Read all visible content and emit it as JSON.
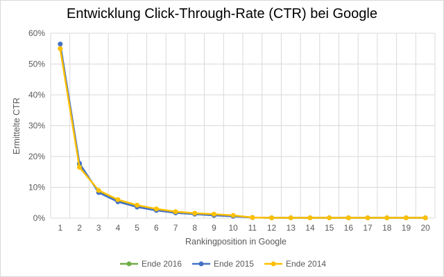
{
  "chart_data": {
    "type": "line",
    "title": "Entwicklung Click-Through-Rate (CTR) bei Google",
    "xlabel": "Rankingposition  in Google",
    "ylabel": "Ermittelte CTR",
    "x": [
      1,
      2,
      3,
      4,
      5,
      6,
      7,
      8,
      9,
      10,
      11,
      12,
      13,
      14,
      15,
      16,
      17,
      18,
      19,
      20
    ],
    "ylim": [
      0,
      0.6
    ],
    "y_ticks": [
      0,
      0.1,
      0.2,
      0.3,
      0.4,
      0.5,
      0.6
    ],
    "y_tick_labels": [
      "0%",
      "10%",
      "20%",
      "30%",
      "40%",
      "50%",
      "60%"
    ],
    "grid": true,
    "legend_position": "bottom",
    "series": [
      {
        "name": "Ende 2016",
        "color": "#70ad47",
        "values": [
          0.55,
          0.175,
          0.085,
          0.055,
          0.038,
          0.026,
          0.018,
          0.014,
          0.011,
          0.008,
          0.002,
          0.001,
          0.001,
          0.001,
          0.001,
          0.001,
          0.001,
          0.001,
          0.001,
          0.001
        ]
      },
      {
        "name": "Ende 2015",
        "color": "#4472c4",
        "values": [
          0.565,
          0.178,
          0.083,
          0.053,
          0.036,
          0.025,
          0.017,
          0.013,
          0.009,
          0.006,
          0.002,
          0.001,
          0.001,
          0.001,
          0.001,
          0.001,
          0.001,
          0.001,
          0.001,
          0.001
        ]
      },
      {
        "name": "Ende 2014",
        "color": "#ffc000",
        "values": [
          0.55,
          0.165,
          0.09,
          0.06,
          0.042,
          0.03,
          0.021,
          0.016,
          0.013,
          0.009,
          0.002,
          0.001,
          0.001,
          0.001,
          0.001,
          0.001,
          0.001,
          0.001,
          0.001,
          0.001
        ]
      }
    ]
  }
}
